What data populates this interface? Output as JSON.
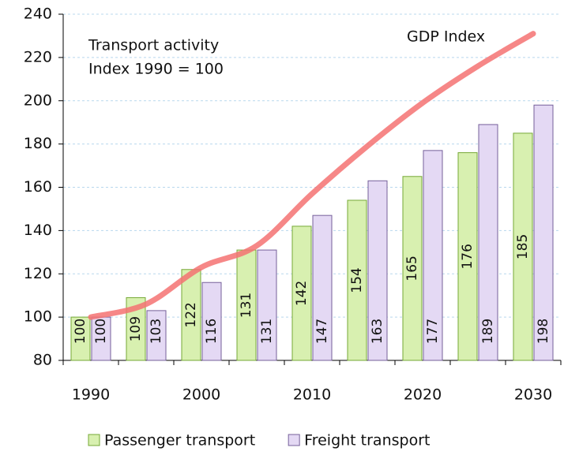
{
  "chart_data": {
    "type": "bar",
    "annotation": [
      "Transport activity",
      "Index 1990  = 100"
    ],
    "categories": [
      "1990",
      null,
      "2000",
      null,
      "2010",
      null,
      "2020",
      null,
      "2030"
    ],
    "series": [
      {
        "name": "Passenger transport",
        "type": "bar",
        "color": "#d8f0b0",
        "stroke": "#76a836",
        "values": [
          100,
          109,
          122,
          131,
          142,
          154,
          165,
          176,
          185
        ]
      },
      {
        "name": "Freight transport",
        "type": "bar",
        "color": "#e4d9f4",
        "stroke": "#76609a",
        "values": [
          100,
          103,
          116,
          131,
          147,
          163,
          177,
          189,
          198
        ]
      },
      {
        "name": "GDP Index",
        "type": "line",
        "color": "#f47272",
        "values": [
          100,
          106,
          123,
          133,
          157,
          179,
          199,
          216,
          231
        ]
      }
    ],
    "ylim": [
      80,
      240
    ],
    "yticks": [
      80,
      100,
      120,
      140,
      160,
      180,
      200,
      220,
      240
    ],
    "grid": true
  }
}
